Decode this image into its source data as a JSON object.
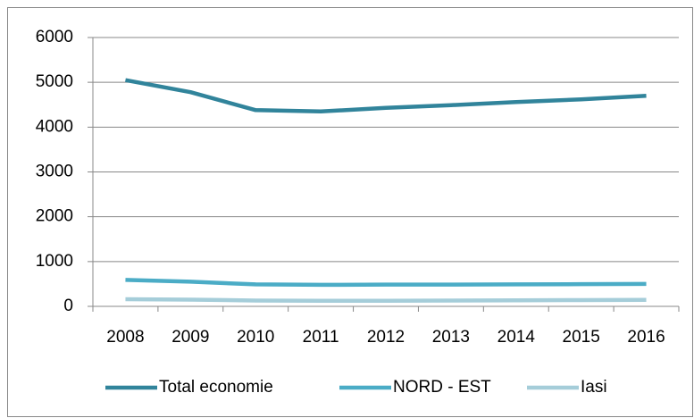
{
  "chart_data": {
    "type": "line",
    "categories": [
      "2008",
      "2009",
      "2010",
      "2011",
      "2012",
      "2013",
      "2014",
      "2015",
      "2016"
    ],
    "series": [
      {
        "name": "Total economie",
        "color": "#31849b",
        "values": [
          5050,
          4780,
          4380,
          4350,
          4430,
          4490,
          4560,
          4620,
          4700
        ]
      },
      {
        "name": "NORD - EST",
        "color": "#4bacc6",
        "values": [
          590,
          550,
          490,
          480,
          485,
          485,
          490,
          495,
          500
        ]
      },
      {
        "name": "Iasi",
        "color": "#a5cdd9",
        "values": [
          160,
          150,
          130,
          125,
          125,
          130,
          135,
          140,
          145
        ]
      }
    ],
    "ylim": [
      0,
      6000
    ],
    "yticks": [
      0,
      1000,
      2000,
      3000,
      4000,
      5000,
      6000
    ],
    "grid": true,
    "legend": "bottom"
  }
}
